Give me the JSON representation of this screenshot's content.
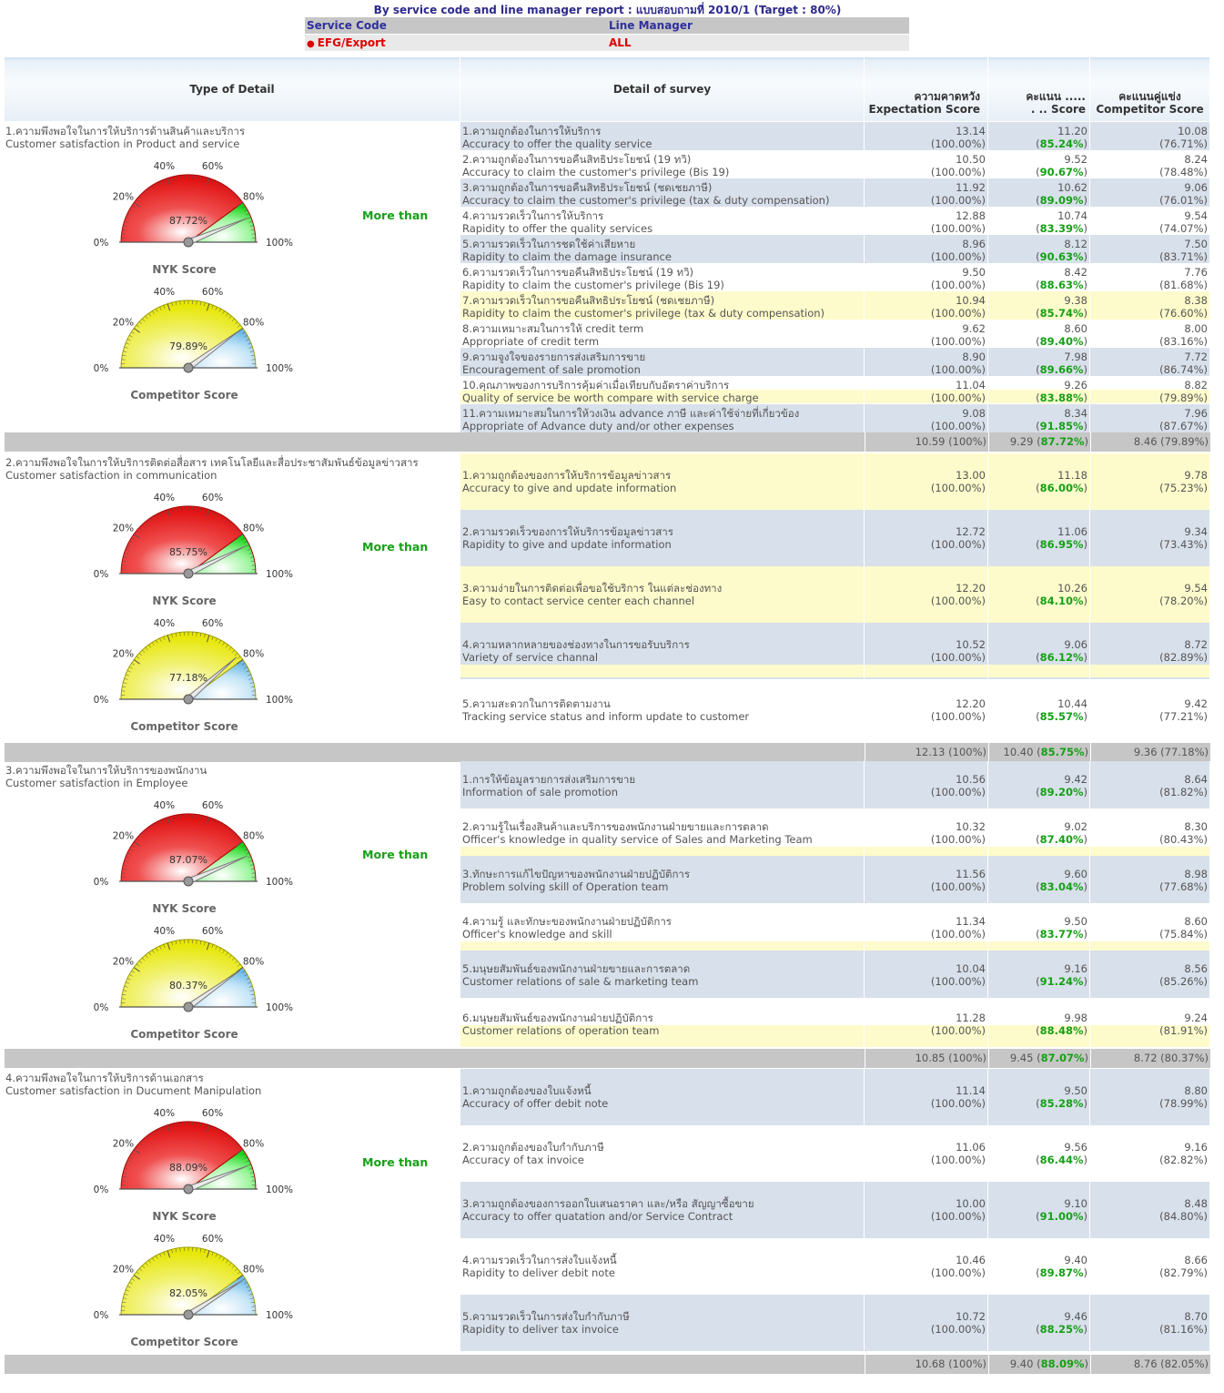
{
  "report": {
    "title": "By service code and line manager report : แบบสอบถามที่ 2010/1 (Target : 80%)",
    "filter_headers": [
      "Service Code",
      "Line Manager"
    ],
    "filter_values": [
      "EFG/Export",
      "ALL"
    ]
  },
  "table_header": {
    "type_of_detail": "Type of Detail",
    "detail_of_survey": "Detail of survey",
    "expectation_th": "ความคาดหวัง",
    "expectation_en": "Expectation Score",
    "score_th": "คะแนน .....",
    "score_en": ". .. Score",
    "competitor_th": "คะแนนคู่แข่ง",
    "competitor_en": "Competitor Score"
  },
  "gauge_ticks": [
    "0%",
    "20%",
    "40%",
    "60%",
    "80%",
    "100%"
  ],
  "sections": [
    {
      "title_th": "1.ความพึงพอใจในการให้บริการด้านสินค้าและบริการ",
      "title_en": "Customer satisfaction in Product and service",
      "comparison": "More than",
      "nyk_gauge": {
        "label": "NYK Score",
        "value": 87.72,
        "text": "87.72%"
      },
      "competitor_gauge": {
        "label": "Competitor Score",
        "value": 79.89,
        "text": "79.89%"
      },
      "rows": [
        {
          "th": "1.ความถูกต้องในการให้บริการ",
          "en": "Accuracy to offer the quality service",
          "exp": "13.14",
          "exp_pct": "(100.00%)",
          "score": "11.20",
          "score_pct": "85.24%",
          "comp": "10.08",
          "comp_pct": "(76.71%)"
        },
        {
          "th": "2.ความถูกต้องในการขอคืนสิทธิประโยชน์ (19 ทวิ)",
          "en": "Accuracy to claim the customer's privilege (Bis 19)",
          "exp": "10.50",
          "exp_pct": "(100.00%)",
          "score": "9.52",
          "score_pct": "90.67%",
          "comp": "8.24",
          "comp_pct": "(78.48%)"
        },
        {
          "th": "3.ความถูกต้องในการขอคืนสิทธิประโยชน์ (ชดเชยภาษี)",
          "en": "Accuracy to claim the customer's privilege (tax & duty compensation)",
          "exp": "11.92",
          "exp_pct": "(100.00%)",
          "score": "10.62",
          "score_pct": "89.09%",
          "comp": "9.06",
          "comp_pct": "(76.01%)"
        },
        {
          "th": "4.ความรวดเร็วในการให้บริการ",
          "en": "Rapidity to offer the quality services",
          "exp": "12.88",
          "exp_pct": "(100.00%)",
          "score": "10.74",
          "score_pct": "83.39%",
          "comp": "9.54",
          "comp_pct": "(74.07%)"
        },
        {
          "th": "5.ความรวดเร็วในการชดใช้ค่าเสียหาย",
          "en": "Rapidity to claim the damage insurance",
          "exp": "8.96",
          "exp_pct": "(100.00%)",
          "score": "8.12",
          "score_pct": "90.63%",
          "comp": "7.50",
          "comp_pct": "(83.71%)"
        },
        {
          "th": "6.ความรวดเร็วในการขอคืนสิทธิประโยชน์ (19 ทวิ)",
          "en": "Rapidity to claim the customer's privilege (Bis 19)",
          "exp": "9.50",
          "exp_pct": "(100.00%)",
          "score": "8.42",
          "score_pct": "88.63%",
          "comp": "7.76",
          "comp_pct": "(81.68%)"
        },
        {
          "th": "7.ความรวดเร็วในการขอคืนสิทธิประโยชน์ (ชดเชยภาษี)",
          "en": "Rapidity to claim the customer's privilege (tax & duty compensation)",
          "exp": "10.94",
          "exp_pct": "(100.00%)",
          "score": "9.38",
          "score_pct": "85.74%",
          "comp": "8.38",
          "comp_pct": "(76.60%)"
        },
        {
          "th": "8.ความเหมาะสมในการให้ credit term",
          "en": "Appropriate of credit term",
          "exp": "9.62",
          "exp_pct": "(100.00%)",
          "score": "8.60",
          "score_pct": "89.40%",
          "comp": "8.00",
          "comp_pct": "(83.16%)"
        },
        {
          "th": "9.ความจูงใจของรายการส่งเสริมการขาย",
          "en": "Encouragement of sale promotion",
          "exp": "8.90",
          "exp_pct": "(100.00%)",
          "score": "7.98",
          "score_pct": "89.66%",
          "comp": "7.72",
          "comp_pct": "(86.74%)"
        },
        {
          "th": "10.คุณภาพของการบริการคุ้มค่าเมื่อเทียบกับอัตราค่าบริการ",
          "en": "Quality of service be worth compare with service charge",
          "exp": "11.04",
          "exp_pct": "(100.00%)",
          "score": "9.26",
          "score_pct": "83.88%",
          "comp": "8.82",
          "comp_pct": "(79.89%)"
        },
        {
          "th": "11.ความเหมาะสมในการให้วงเงิน advance ภาษี และค่าใช้จ่ายที่เกี่ยวข้อง",
          "en": "Appropriate of Advance duty and/or other expenses",
          "exp": "9.08",
          "exp_pct": "(100.00%)",
          "score": "8.34",
          "score_pct": "91.85%",
          "comp": "7.96",
          "comp_pct": "(87.67%)"
        }
      ],
      "summary": {
        "exp": "10.59 (100%)",
        "score": "9.29",
        "score_pct": "87.72%",
        "comp": "8.46 (79.89%)"
      }
    },
    {
      "title_th": "2.ความพึงพอใจในการให้บริการติดต่อสื่อสาร เทคโนโลยีและสื่อประชาสัมพันธ์ข้อมูลข่าวสาร",
      "title_en": "Customer satisfaction in communication",
      "comparison": "More than",
      "nyk_gauge": {
        "label": "NYK Score",
        "value": 85.75,
        "text": "85.75%"
      },
      "competitor_gauge": {
        "label": "Competitor Score",
        "value": 77.18,
        "text": "77.18%"
      },
      "rows": [
        {
          "th": "1.ความถูกต้องของการให้บริการข้อมูลข่าวสาร",
          "en": "Accuracy to give and update information",
          "exp": "13.00",
          "exp_pct": "(100.00%)",
          "score": "11.18",
          "score_pct": "86.00%",
          "comp": "9.78",
          "comp_pct": "(75.23%)"
        },
        {
          "th": "2.ความรวดเร็วของการให้บริการข้อมูลข่าวสาร",
          "en": "Rapidity to give and update information",
          "exp": "12.72",
          "exp_pct": "(100.00%)",
          "score": "11.06",
          "score_pct": "86.95%",
          "comp": "9.34",
          "comp_pct": "(73.43%)"
        },
        {
          "th": "3.ความง่ายในการติดต่อเพื่อขอใช้บริการ ในแต่ละช่องทาง",
          "en": "Easy to contact service center each channel",
          "exp": "12.20",
          "exp_pct": "(100.00%)",
          "score": "10.26",
          "score_pct": "84.10%",
          "comp": "9.54",
          "comp_pct": "(78.20%)"
        },
        {
          "th": "4.ความหลากหลายของช่องทางในการขอรับบริการ",
          "en": "Variety of service channal",
          "exp": "10.52",
          "exp_pct": "(100.00%)",
          "score": "9.06",
          "score_pct": "86.12%",
          "comp": "8.72",
          "comp_pct": "(82.89%)"
        },
        {
          "th": "5.ความสะดวกในการติดตามงาน",
          "en": "Tracking service status and inform update to customer",
          "exp": "12.20",
          "exp_pct": "(100.00%)",
          "score": "10.44",
          "score_pct": "85.57%",
          "comp": "9.42",
          "comp_pct": "(77.21%)"
        }
      ],
      "summary": {
        "exp": "12.13 (100%)",
        "score": "10.40",
        "score_pct": "85.75%",
        "comp": "9.36 (77.18%)"
      }
    },
    {
      "title_th": "3.ความพึงพอใจในการให้บริการของพนักงาน",
      "title_en": "Customer satisfaction in Employee",
      "comparison": "More than",
      "nyk_gauge": {
        "label": "NYK Score",
        "value": 87.07,
        "text": "87.07%"
      },
      "competitor_gauge": {
        "label": "Competitor Score",
        "value": 80.37,
        "text": "80.37%"
      },
      "rows": [
        {
          "th": "1.การให้ข้อมูลรายการส่งเสริมการขาย",
          "en": "Information of sale promotion",
          "exp": "10.56",
          "exp_pct": "(100.00%)",
          "score": "9.42",
          "score_pct": "89.20%",
          "comp": "8.64",
          "comp_pct": "(81.82%)"
        },
        {
          "th": "2.ความรู้ในเรื่องสินค้าและบริการของพนักงานฝ่ายขายและการตลาด",
          "en": "Officer's knowledge in quality service of Sales and Marketing Team",
          "exp": "10.32",
          "exp_pct": "(100.00%)",
          "score": "9.02",
          "score_pct": "87.40%",
          "comp": "8.30",
          "comp_pct": "(80.43%)"
        },
        {
          "th": "3.ทักษะการแก้ไขปัญหาของพนักงานฝ่ายปฏิบัติการ",
          "en": "Problem solving skill of Operation team",
          "exp": "11.56",
          "exp_pct": "(100.00%)",
          "score": "9.60",
          "score_pct": "83.04%",
          "comp": "8.98",
          "comp_pct": "(77.68%)"
        },
        {
          "th": "4.ความรู้ และทักษะของพนักงานฝ่ายปฏิบัติการ",
          "en": "Officer's knowledge and skill",
          "exp": "11.34",
          "exp_pct": "(100.00%)",
          "score": "9.50",
          "score_pct": "83.77%",
          "comp": "8.60",
          "comp_pct": "(75.84%)"
        },
        {
          "th": "5.มนุษยสัมพันธ์ของพนักงานฝ่ายขายและการตลาด",
          "en": "Customer relations of sale & marketing team",
          "exp": "10.04",
          "exp_pct": "(100.00%)",
          "score": "9.16",
          "score_pct": "91.24%",
          "comp": "8.56",
          "comp_pct": "(85.26%)"
        },
        {
          "th": "6.มนุษยสัมพันธ์ของพนักงานฝ่ายปฏิบัติการ",
          "en": "Customer relations of operation team",
          "exp": "11.28",
          "exp_pct": "(100.00%)",
          "score": "9.98",
          "score_pct": "88.48%",
          "comp": "9.24",
          "comp_pct": "(81.91%)"
        }
      ],
      "summary": {
        "exp": "10.85 (100%)",
        "score": "9.45",
        "score_pct": "87.07%",
        "comp": "8.72 (80.37%)"
      }
    },
    {
      "title_th": "4.ความพึงพอใจในการให้บริการด้านเอกสาร",
      "title_en": "Customer satisfaction in Ducument Manipulation",
      "comparison": "More than",
      "nyk_gauge": {
        "label": "NYK Score",
        "value": 88.09,
        "text": "88.09%"
      },
      "competitor_gauge": {
        "label": "Competitor Score",
        "value": 82.05,
        "text": "82.05%"
      },
      "rows": [
        {
          "th": "1.ความถูกต้องของใบแจ้งหนี้",
          "en": "Accuracy of offer debit note",
          "exp": "11.14",
          "exp_pct": "(100.00%)",
          "score": "9.50",
          "score_pct": "85.28%",
          "comp": "8.80",
          "comp_pct": "(78.99%)"
        },
        {
          "th": "2.ความถูกต้องของใบกำกับภาษี",
          "en": "Accuracy of tax invoice",
          "exp": "11.06",
          "exp_pct": "(100.00%)",
          "score": "9.56",
          "score_pct": "86.44%",
          "comp": "9.16",
          "comp_pct": "(82.82%)"
        },
        {
          "th": "3.ความถูกต้องของการออกใบเสนอราคา และ/หรือ สัญญาซื้อขาย",
          "en": "Accuracy to offer quatation and/or Service Contract",
          "exp": "10.00",
          "exp_pct": "(100.00%)",
          "score": "9.10",
          "score_pct": "91.00%",
          "comp": "8.48",
          "comp_pct": "(84.80%)"
        },
        {
          "th": "4.ความรวดเร็วในการส่งใบแจ้งหนี้",
          "en": "Rapidity to deliver debit note",
          "exp": "10.46",
          "exp_pct": "(100.00%)",
          "score": "9.40",
          "score_pct": "89.87%",
          "comp": "8.66",
          "comp_pct": "(82.79%)"
        },
        {
          "th": "5.ความรวดเร็วในการส่งใบกำกับภาษี",
          "en": "Rapidity to deliver tax invoice",
          "exp": "10.72",
          "exp_pct": "(100.00%)",
          "score": "9.46",
          "score_pct": "88.25%",
          "comp": "8.70",
          "comp_pct": "(81.16%)"
        }
      ],
      "summary": {
        "exp": "10.68 (100%)",
        "score": "9.40",
        "score_pct": "88.09%",
        "comp": "8.76 (82.05%)"
      }
    }
  ]
}
